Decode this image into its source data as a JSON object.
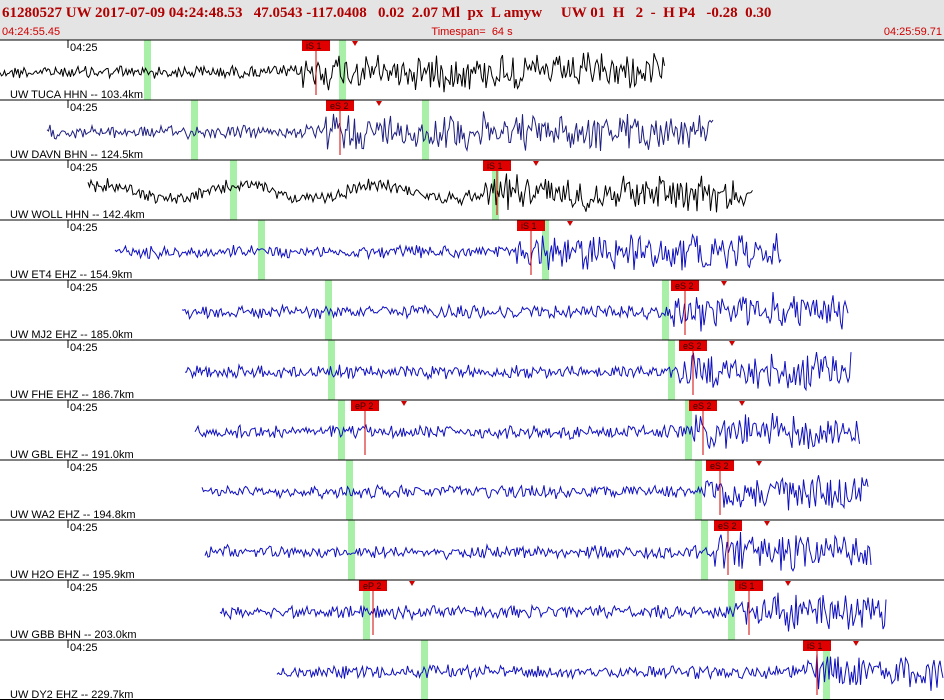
{
  "header": {
    "event": "61280527 UW 2017-07-09 04:24:48.53   47.0543 -117.0408   0.02  2.07 Ml  px  L amyw     UW 01  H   2  -  H P4   -0.28  0.30",
    "start_time": "04:24:55.45",
    "timespan": "Timespan=  64 s",
    "end_time": "04:25:59.71"
  },
  "traces": [
    {
      "label": "UW TUCA HHN -- 103.4km",
      "tick": "04:25",
      "picks": [
        "iS 1"
      ]
    },
    {
      "label": "UW DAVN BHN -- 124.5km",
      "tick": "04:25",
      "picks": [
        "eS 2"
      ]
    },
    {
      "label": "UW WOLL HHN -- 142.4km",
      "tick": "04:25",
      "picks": [
        "iS 1"
      ]
    },
    {
      "label": "UW ET4 EHZ -- 154.9km",
      "tick": "04:25",
      "picks": [
        "iS 1"
      ]
    },
    {
      "label": "UW MJ2 EHZ -- 185.0km",
      "tick": "04:25",
      "picks": [
        "eS 2"
      ]
    },
    {
      "label": "UW FHE EHZ -- 186.7km",
      "tick": "04:25",
      "picks": [
        "eS 2"
      ]
    },
    {
      "label": "UW GBL EHZ -- 191.0km",
      "tick": "04:25",
      "picks": [
        "eP 2",
        "eS 2"
      ]
    },
    {
      "label": "UW WA2 EHZ -- 194.8km",
      "tick": "04:25",
      "picks": [
        "eS 2"
      ]
    },
    {
      "label": "UW H2O EHZ -- 195.9km",
      "tick": "04:25",
      "picks": [
        "eS 2"
      ]
    },
    {
      "label": "UW GBB BHN -- 203.0km",
      "tick": "04:25",
      "picks": [
        "eP 2",
        "iS 1"
      ]
    },
    {
      "label": "UW DY2 EHZ -- 229.7km",
      "tick": "04:25",
      "picks": [
        "iS 1"
      ]
    }
  ]
}
